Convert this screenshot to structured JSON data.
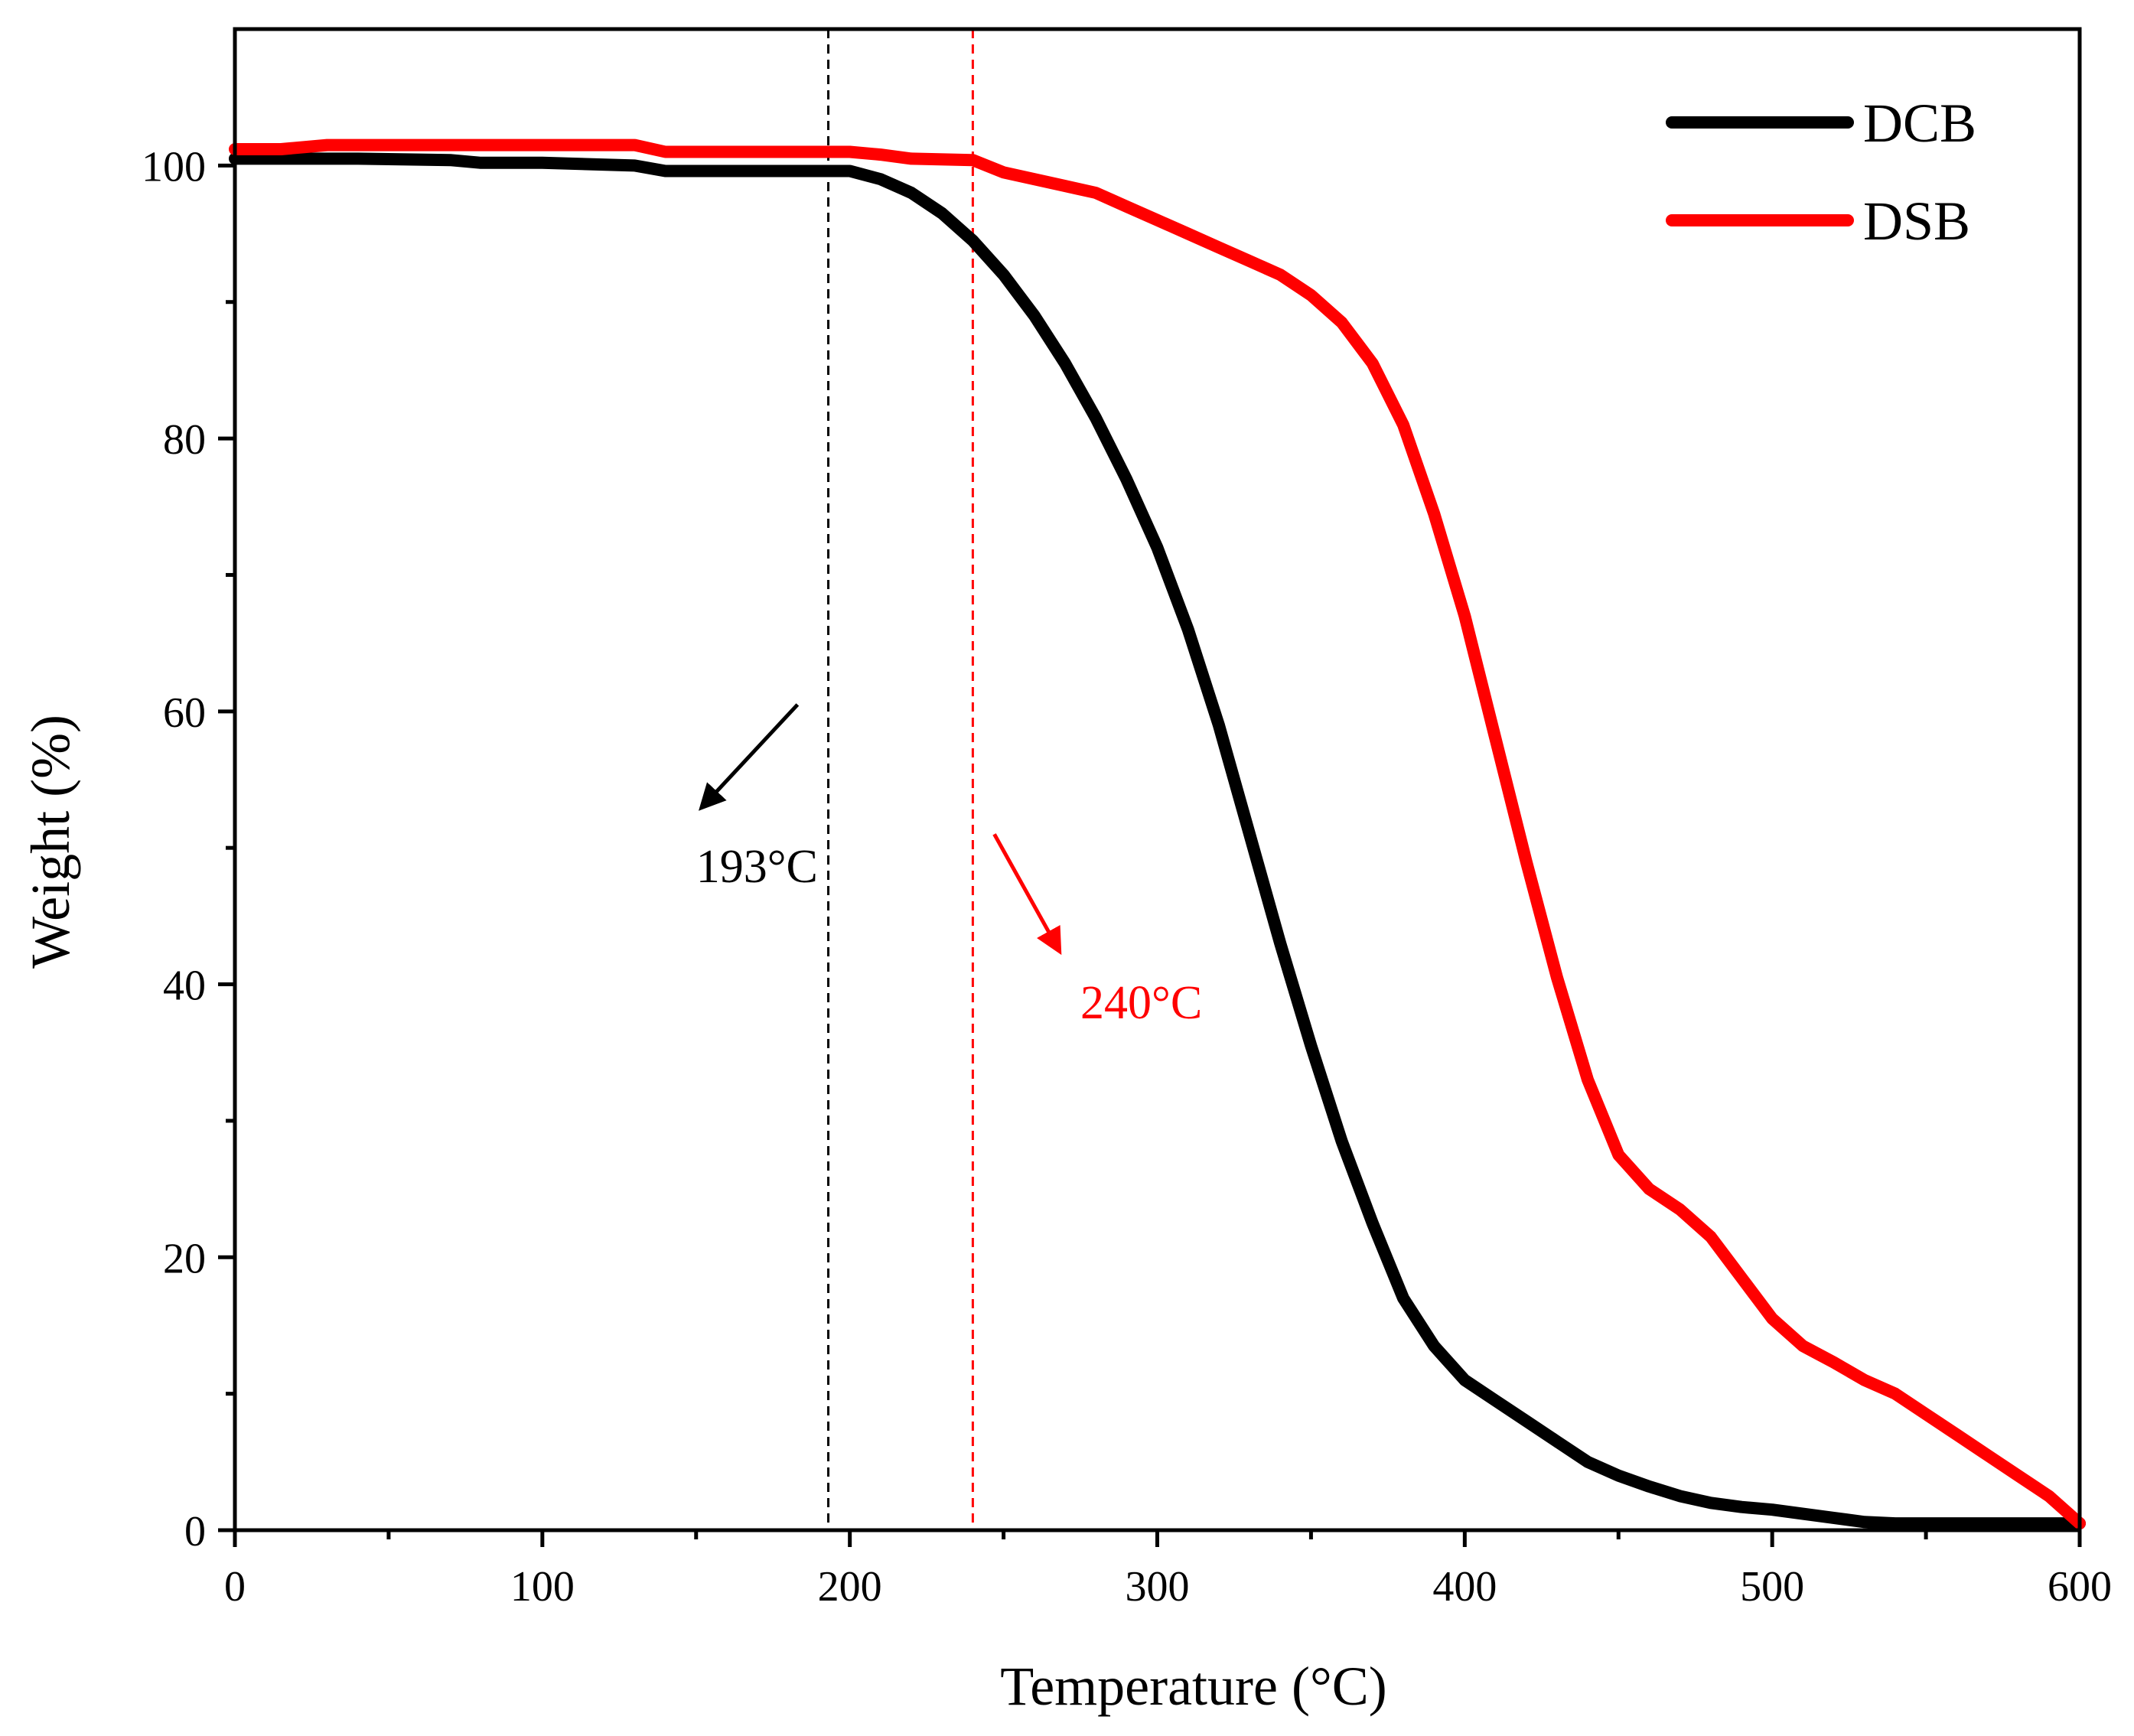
{
  "chart_data": {
    "type": "line",
    "title": "",
    "xlabel": "Temperature (°C)",
    "ylabel": "Weight (%)",
    "xlim": [
      0,
      600
    ],
    "ylim": [
      0,
      110
    ],
    "grid": false,
    "legend_position": "top-right",
    "x_ticks": [
      0,
      100,
      200,
      300,
      400,
      500,
      600
    ],
    "y_ticks": [
      0,
      20,
      40,
      60,
      80,
      100
    ],
    "x_tick_labels": [
      "0",
      "100",
      "200",
      "300",
      "400",
      "500",
      "600"
    ],
    "y_tick_labels": [
      "0",
      "20",
      "40",
      "60",
      "80",
      "100"
    ],
    "series": [
      {
        "name": "DCB",
        "color": "#000000",
        "points": [
          [
            0,
            100.5
          ],
          [
            40,
            100.5
          ],
          [
            70,
            100.4
          ],
          [
            80,
            100.2
          ],
          [
            100,
            100.2
          ],
          [
            130,
            100.0
          ],
          [
            140,
            99.6
          ],
          [
            180,
            99.6
          ],
          [
            200,
            99.6
          ],
          [
            210,
            99.0
          ],
          [
            220,
            98.0
          ],
          [
            230,
            96.5
          ],
          [
            240,
            94.5
          ],
          [
            250,
            92.0
          ],
          [
            260,
            89.0
          ],
          [
            270,
            85.5
          ],
          [
            280,
            81.5
          ],
          [
            290,
            77.0
          ],
          [
            300,
            72.0
          ],
          [
            310,
            66.0
          ],
          [
            320,
            59.0
          ],
          [
            330,
            51.0
          ],
          [
            340,
            43.0
          ],
          [
            350,
            35.5
          ],
          [
            360,
            28.5
          ],
          [
            370,
            22.5
          ],
          [
            380,
            17.0
          ],
          [
            390,
            13.5
          ],
          [
            400,
            11.0
          ],
          [
            410,
            9.5
          ],
          [
            420,
            8.0
          ],
          [
            430,
            6.5
          ],
          [
            440,
            5.0
          ],
          [
            450,
            4.0
          ],
          [
            460,
            3.2
          ],
          [
            470,
            2.5
          ],
          [
            480,
            2.0
          ],
          [
            490,
            1.7
          ],
          [
            500,
            1.5
          ],
          [
            510,
            1.2
          ],
          [
            520,
            0.9
          ],
          [
            530,
            0.6
          ],
          [
            540,
            0.5
          ],
          [
            570,
            0.5
          ],
          [
            600,
            0.5
          ]
        ]
      },
      {
        "name": "DSB",
        "color": "#ff0000",
        "points": [
          [
            0,
            101.2
          ],
          [
            15,
            101.2
          ],
          [
            30,
            101.5
          ],
          [
            130,
            101.5
          ],
          [
            140,
            101.0
          ],
          [
            200,
            101.0
          ],
          [
            210,
            100.8
          ],
          [
            220,
            100.5
          ],
          [
            240,
            100.4
          ],
          [
            250,
            99.5
          ],
          [
            260,
            99.0
          ],
          [
            270,
            98.5
          ],
          [
            280,
            98.0
          ],
          [
            290,
            97.0
          ],
          [
            300,
            96.0
          ],
          [
            310,
            95.0
          ],
          [
            320,
            94.0
          ],
          [
            330,
            93.0
          ],
          [
            340,
            92.0
          ],
          [
            350,
            90.5
          ],
          [
            360,
            88.5
          ],
          [
            370,
            85.5
          ],
          [
            380,
            81.0
          ],
          [
            390,
            74.5
          ],
          [
            400,
            67.0
          ],
          [
            410,
            58.0
          ],
          [
            420,
            49.0
          ],
          [
            430,
            40.5
          ],
          [
            440,
            33.0
          ],
          [
            450,
            27.5
          ],
          [
            460,
            25.0
          ],
          [
            470,
            23.5
          ],
          [
            480,
            21.5
          ],
          [
            490,
            18.5
          ],
          [
            500,
            15.5
          ],
          [
            510,
            13.5
          ],
          [
            520,
            12.3
          ],
          [
            530,
            11.0
          ],
          [
            540,
            10.0
          ],
          [
            550,
            8.5
          ],
          [
            560,
            7.0
          ],
          [
            570,
            5.5
          ],
          [
            580,
            4.0
          ],
          [
            590,
            2.5
          ],
          [
            600,
            0.5
          ]
        ]
      }
    ],
    "reference_lines": [
      {
        "x": 193,
        "color": "#000000",
        "style": "dashed"
      },
      {
        "x": 240,
        "color": "#ff0000",
        "style": "dashed"
      }
    ],
    "annotations": [
      {
        "text": "193°C",
        "color": "#000000",
        "anchor_x": 150,
        "anchor_y": 47.5,
        "arrow": true
      },
      {
        "text": "240°C",
        "color": "#ff0000",
        "anchor_x": 275,
        "anchor_y": 37.5,
        "arrow": true
      }
    ]
  }
}
